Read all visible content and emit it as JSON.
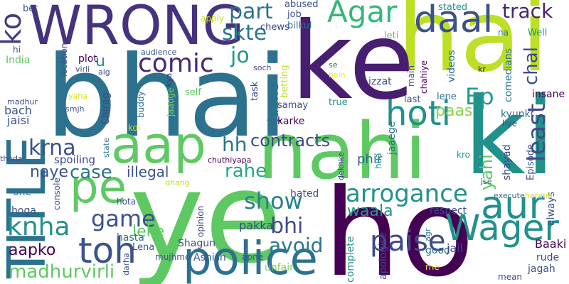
{
  "background": "#ffffff",
  "palette": [
    "#440154",
    "#3b528b",
    "#21918c",
    "#5ec962",
    "#fde725"
  ],
  "words": [
    {
      "key": "ye",
      "text": "ye",
      "color": "#5ec962"
    },
    {
      "key": "ho",
      "text": "ho",
      "color": "#440154"
    },
    {
      "key": "ki",
      "text": "ki",
      "color": "#21918c"
    },
    {
      "key": "hai",
      "text": "hai",
      "color": "#bddf26"
    },
    {
      "key": "bhai",
      "text": "bhai",
      "color": "#2c728e"
    },
    {
      "key": "ke",
      "text": "ke",
      "color": "#481f70"
    },
    {
      "key": "nahi",
      "text": "nahi",
      "color": "#5ec962"
    },
    {
      "key": "title",
      "text": "TITLE",
      "color": "#2c728e"
    },
    {
      "key": "wrong",
      "text": "WRONG",
      "color": "#46327e"
    },
    {
      "key": "police",
      "text": "police",
      "color": "#2c728e"
    },
    {
      "key": "pe",
      "text": "pe",
      "color": "#5ec962"
    },
    {
      "key": "aap",
      "text": "aap",
      "color": "#5ec962"
    },
    {
      "key": "aur",
      "text": "aur",
      "color": "#21918c"
    },
    {
      "key": "daal",
      "text": "daal",
      "color": "#3b528b"
    },
    {
      "key": "hoti",
      "text": "hoti",
      "color": "#21918c"
    },
    {
      "key": "wager",
      "text": "Wager",
      "color": "#21918c"
    },
    {
      "key": "toh",
      "text": "toh",
      "color": "#3b528b"
    },
    {
      "key": "agar",
      "text": "Agar",
      "color": "#35b779"
    },
    {
      "key": "arrogance",
      "text": "arrogance",
      "color": "#21918c"
    },
    {
      "key": "paise",
      "text": "paise",
      "color": "#3e4989"
    },
    {
      "key": "ko",
      "text": "ko",
      "color": "#433e85"
    },
    {
      "key": "comic",
      "text": "comic",
      "color": "#482878"
    },
    {
      "key": "knha",
      "text": "knha",
      "color": "#21918c"
    },
    {
      "key": "game",
      "text": "game",
      "color": "#3b528b"
    },
    {
      "key": "least",
      "text": "least",
      "color": "#3e4989"
    },
    {
      "key": "ep",
      "text": "Ep",
      "color": "#1e9c89"
    },
    {
      "key": "show",
      "text": "show",
      "color": "#26828e"
    },
    {
      "key": "skte",
      "text": "skte",
      "color": "#2a788e"
    },
    {
      "key": "part",
      "text": "part",
      "color": "#2c728e"
    },
    {
      "key": "track",
      "text": "track",
      "color": "#482475"
    },
    {
      "key": "krna",
      "text": "krna",
      "color": "#3b528b"
    },
    {
      "key": "hh",
      "text": "hh",
      "color": "#2c728e"
    },
    {
      "key": "contracts",
      "text": "contracts",
      "color": "#3e4989"
    },
    {
      "key": "jo",
      "text": "jo",
      "color": "#1f988b"
    },
    {
      "key": "madhurvirli",
      "text": "madhurvirli",
      "color": "#5ec962"
    },
    {
      "key": "bhi",
      "text": "bhi",
      "color": "#3e4989"
    },
    {
      "key": "avoid",
      "text": "avoid",
      "color": "#2a788e"
    },
    {
      "key": "rahe",
      "text": "rahe",
      "color": "#22a884"
    },
    {
      "key": "waala",
      "text": "waala",
      "color": "#1f988b"
    },
    {
      "key": "case",
      "text": "case",
      "color": "#2c728e"
    },
    {
      "key": "chal",
      "text": "chal",
      "color": "#3e4989"
    },
    {
      "key": "yahi",
      "text": "yahi",
      "color": "#5ec962"
    },
    {
      "key": "leke",
      "text": "leke",
      "color": "#5ec962"
    },
    {
      "key": "aapko",
      "text": "aapko",
      "color": "#440154"
    },
    {
      "key": "naye",
      "text": "naye",
      "color": "#3b528b"
    },
    {
      "key": "illegal",
      "text": "illegal",
      "color": "#3b528b"
    },
    {
      "key": "paas",
      "text": "paas",
      "color": "#86d549"
    },
    {
      "key": "u",
      "text": "u",
      "color": "#21918c"
    },
    {
      "key": "jaane",
      "text": "jaane",
      "color": "#2c728e"
    },
    {
      "key": "phir",
      "text": "phir",
      "color": "#31688e"
    },
    {
      "key": "pakka",
      "text": "pakka",
      "color": "#3e4989"
    },
    {
      "key": "bet",
      "text": "bet",
      "color": "#3b528b"
    },
    {
      "key": "apply",
      "text": "apply",
      "color": "#c2df23"
    },
    {
      "key": "stated",
      "text": "stated",
      "color": "#21918c"
    },
    {
      "key": "abused",
      "text": "abused",
      "color": "#3b528b"
    },
    {
      "key": "bilkul",
      "text": "bilkul",
      "color": "#2c728e"
    },
    {
      "key": "job",
      "text": "job",
      "color": "#3b528b"
    },
    {
      "key": "chews",
      "text": "chews",
      "color": "#3e4989"
    },
    {
      "key": "leti",
      "text": "leti",
      "color": "#5ec962"
    },
    {
      "key": "na",
      "text": "na",
      "color": "#2c728e"
    },
    {
      "key": "well",
      "text": "Well",
      "color": "#21918c"
    },
    {
      "key": "hi",
      "text": "hi",
      "color": "#3e4989"
    },
    {
      "key": "india",
      "text": "India",
      "color": "#5ec962"
    },
    {
      "key": "location",
      "text": "location",
      "color": "#3b528b"
    },
    {
      "key": "plot",
      "text": "plot",
      "color": "#440154"
    },
    {
      "key": "virli",
      "text": "virli",
      "color": "#3e4989"
    },
    {
      "key": "alg",
      "text": "alg",
      "color": "#3e4989"
    },
    {
      "key": "audience",
      "text": "audience",
      "color": "#3b528b"
    },
    {
      "key": "soch",
      "text": "soch",
      "color": "#3e4989"
    },
    {
      "key": "kya",
      "text": "kya",
      "color": "#46327e"
    },
    {
      "key": "se",
      "text": "se",
      "color": "#2c728e"
    },
    {
      "key": "hain",
      "text": "hain",
      "color": "#fde725"
    },
    {
      "key": "izzat",
      "text": "izzat",
      "color": "#3e4989"
    },
    {
      "key": "main",
      "text": "main",
      "color": "#3e4989"
    },
    {
      "key": "chahiye",
      "text": "chahiye",
      "color": "#440154"
    },
    {
      "key": "videos",
      "text": "videos",
      "color": "#2c728e"
    },
    {
      "key": "comedians",
      "text": "comedians",
      "color": "#2a788e"
    },
    {
      "key": "kr",
      "text": "kr",
      "color": "#440154"
    },
    {
      "key": "insane",
      "text": "insane",
      "color": "#440154"
    },
    {
      "key": "madhur",
      "text": "madhur",
      "color": "#3e4989"
    },
    {
      "key": "yaha",
      "text": "yaha",
      "color": "#d8e219"
    },
    {
      "key": "smjh",
      "text": "smjh",
      "color": "#3b528b"
    },
    {
      "key": "self",
      "text": "self",
      "color": "#5ec962"
    },
    {
      "key": "buddy",
      "text": "buddy",
      "color": "#2c728e"
    },
    {
      "key": "jaaoge",
      "text": "jaaoge",
      "color": "#7ad151"
    },
    {
      "key": "task",
      "text": "task",
      "color": "#3e4989"
    },
    {
      "key": "betting",
      "text": "betting",
      "color": "#bddf26"
    },
    {
      "key": "samay",
      "text": "samay",
      "color": "#3e4989"
    },
    {
      "key": "true",
      "text": "true",
      "color": "#21918c"
    },
    {
      "key": "last",
      "text": "last",
      "color": "#3e4989"
    },
    {
      "key": "lene",
      "text": "lene",
      "color": "#2c728e"
    },
    {
      "key": "bach",
      "text": "bach",
      "color": "#3b528b"
    },
    {
      "key": "jaisi",
      "text": "jaisi",
      "color": "#3b528b"
    },
    {
      "key": "chirag",
      "text": "Chirag",
      "color": "#3e4989"
    },
    {
      "key": "koi",
      "text": "koi",
      "color": "#bddf26"
    },
    {
      "key": "karke",
      "text": "karke",
      "color": "#440154"
    },
    {
      "key": "jaaege",
      "text": "jaaege",
      "color": "#2c728e"
    },
    {
      "key": "kyunki",
      "text": "kyunki",
      "color": "#2c728e"
    },
    {
      "key": "liye",
      "text": "liye",
      "color": "#3e4989"
    },
    {
      "key": "thoda",
      "text": "thoda",
      "color": "#3e4989"
    },
    {
      "key": "state",
      "text": "state",
      "color": "#2a788e"
    },
    {
      "key": "chuthiyapa",
      "text": "chuthiyapa",
      "color": "#440154"
    },
    {
      "key": "dekhke",
      "text": "dekhke",
      "color": "#3e4989"
    },
    {
      "key": "shayad",
      "text": "shayad",
      "color": "#3e4989"
    },
    {
      "key": "episode",
      "text": "Episode",
      "color": "#3e4989"
    },
    {
      "key": "kro",
      "text": "kro",
      "color": "#21918c"
    },
    {
      "key": "spoiling",
      "text": "spoiling",
      "color": "#3e4989"
    },
    {
      "key": "hua",
      "text": "hua",
      "color": "#21918c"
    },
    {
      "key": "jse",
      "text": "jse",
      "color": "#3b528b"
    },
    {
      "key": "always",
      "text": "always",
      "color": "#3b528b"
    },
    {
      "key": "dhang",
      "text": "dhang",
      "color": "#bddf26"
    },
    {
      "key": "one",
      "text": "one",
      "color": "#2c728e"
    },
    {
      "key": "console",
      "text": "console",
      "color": "#3b528b"
    },
    {
      "key": "hated",
      "text": "hated",
      "color": "#3b528b"
    },
    {
      "key": "execute",
      "text": "execute",
      "color": "#2c728e"
    },
    {
      "key": "harana",
      "text": "harana",
      "color": "#d8e219"
    },
    {
      "key": "hoga",
      "text": "hoga",
      "color": "#3b528b"
    },
    {
      "key": "hota",
      "text": "hota",
      "color": "#3b528b"
    },
    {
      "key": "respect",
      "text": "respect",
      "color": "#3e4989"
    },
    {
      "key": "opinion",
      "text": "opinion",
      "color": "#3e4989"
    },
    {
      "key": "hasta",
      "text": "hasta",
      "color": "#2c728e"
    },
    {
      "key": "lena",
      "text": "Lena",
      "color": "#3b528b"
    },
    {
      "key": "shagun",
      "text": "Shagun",
      "color": "#3b528b"
    },
    {
      "key": "apologise",
      "text": "apologise",
      "color": "#3e4989"
    },
    {
      "key": "good",
      "text": "good",
      "color": "#2c728e"
    },
    {
      "key": "jail",
      "text": "jail",
      "color": "#3e4989"
    },
    {
      "key": "agr",
      "text": "agr",
      "color": "#2c728e"
    },
    {
      "key": "baaki",
      "text": "Baaki",
      "color": "#440154"
    },
    {
      "key": "rude",
      "text": "rude",
      "color": "#3e4989"
    },
    {
      "key": "darha",
      "text": "darha",
      "color": "#3b528b"
    },
    {
      "key": "mujhme",
      "text": "mujhme",
      "color": "#3b528b"
    },
    {
      "key": "ashish",
      "text": "Ashish",
      "color": "#3b528b"
    },
    {
      "key": "apne",
      "text": "apne",
      "color": "#3b528b"
    },
    {
      "key": "complete",
      "text": "complete",
      "color": "#21918c"
    },
    {
      "key": "unfair",
      "text": "unfair",
      "color": "#7ad151"
    },
    {
      "key": "rhe",
      "text": "rhe",
      "color": "#fde725"
    },
    {
      "key": "jagah",
      "text": "jagah",
      "color": "#3b528b"
    },
    {
      "key": "mean",
      "text": "mean",
      "color": "#3e4989"
    }
  ]
}
